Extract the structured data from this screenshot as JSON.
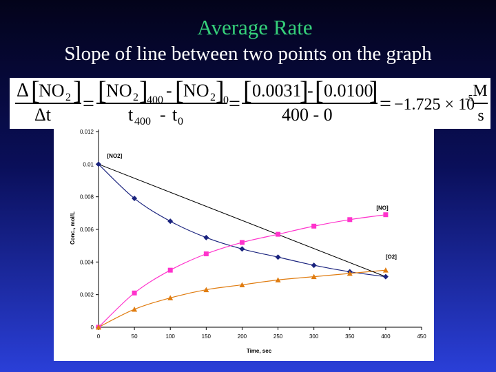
{
  "slide": {
    "title": "Average Rate",
    "subtitle": "Slope of line between two points on the graph"
  },
  "formula": {
    "delta": "Δ",
    "no2": "NO",
    "sub2": "2",
    "sub400": "400",
    "sub0": "0",
    "dt": "Δt",
    "t": "t",
    "minus": "-",
    "eq": "=",
    "val1": "0.0031",
    "val2": "0.0100",
    "den_num": "400 - 0",
    "result": "−1.725 × 10",
    "exp": "-5",
    "unit_num": "M",
    "unit_den": "s"
  },
  "colors": {
    "title": "#35d07a",
    "no2": "#1a237e",
    "no": "#ff33cc",
    "o2": "#e07c10",
    "secant": "#000000"
  },
  "chart_data": {
    "type": "scatter",
    "xlabel": "Time, sec",
    "ylabel": "Conc., mol/L",
    "xlim": [
      0,
      450
    ],
    "ylim": [
      0,
      0.012
    ],
    "xticks": [
      0,
      50,
      100,
      150,
      200,
      250,
      300,
      350,
      400,
      450
    ],
    "yticks": [
      0,
      0.002,
      0.004,
      0.006,
      0.008,
      0.01,
      0.012
    ],
    "ytick_labels": [
      "0",
      "0.002",
      "0.004",
      "0.006",
      "0.008",
      "0.01",
      "0.012"
    ],
    "grid": false,
    "series": [
      {
        "name": "[NO2]",
        "marker": "diamond",
        "x": [
          0,
          50,
          100,
          150,
          200,
          250,
          300,
          350,
          400
        ],
        "y": [
          0.01,
          0.0079,
          0.0065,
          0.0055,
          0.0048,
          0.0043,
          0.0038,
          0.0034,
          0.0031
        ]
      },
      {
        "name": "[NO]",
        "marker": "square",
        "x": [
          0,
          50,
          100,
          150,
          200,
          250,
          300,
          350,
          400
        ],
        "y": [
          0,
          0.0021,
          0.0035,
          0.0045,
          0.0052,
          0.0057,
          0.0062,
          0.0066,
          0.0069
        ]
      },
      {
        "name": "[O2]",
        "marker": "triangle",
        "x": [
          0,
          50,
          100,
          150,
          200,
          250,
          300,
          350,
          400
        ],
        "y": [
          0,
          0.0011,
          0.0018,
          0.0023,
          0.0026,
          0.0029,
          0.0031,
          0.0033,
          0.0035
        ]
      }
    ],
    "secant": {
      "x": [
        0,
        400
      ],
      "y": [
        0.01,
        0.0031
      ]
    }
  }
}
